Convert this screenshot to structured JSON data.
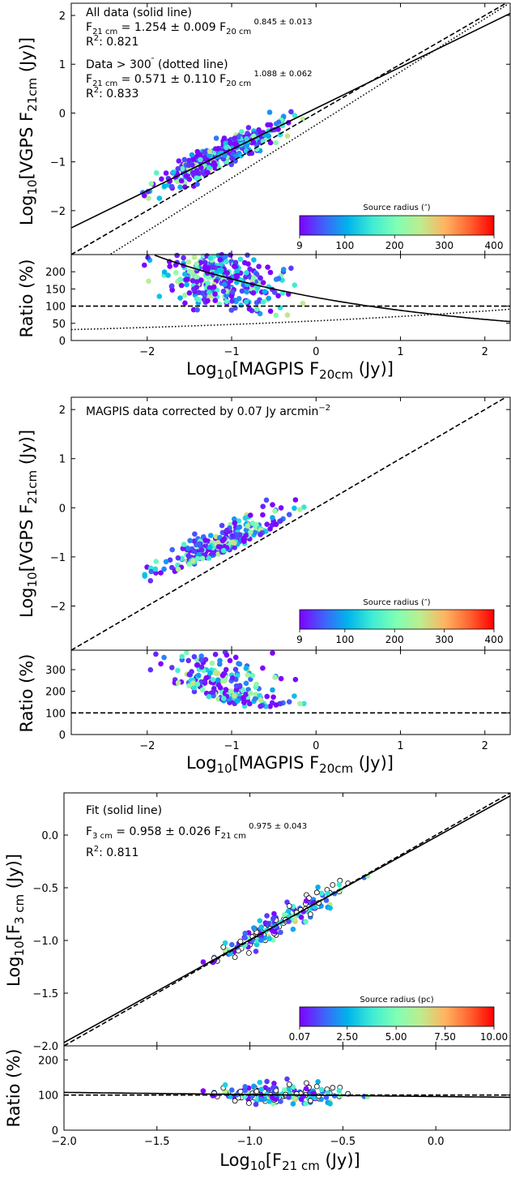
{
  "colors": {
    "colormap": [
      "#8000ff",
      "#4062fa",
      "#00b5eb",
      "#40ecd4",
      "#80ffb4",
      "#c0eb8d",
      "#ffb360",
      "#ff6331",
      "#ff0000"
    ],
    "axes": "#000000",
    "background": "#ffffff"
  },
  "chart_data": [
    {
      "id": "panel1",
      "type": "scatter",
      "xlabel": "Log10[MAGPIS F20cm (Jy)]",
      "ylabel": "Log10[VGPS F21cm (Jy)]",
      "xlim": [
        -2.9,
        2.3
      ],
      "ylim": [
        -2.9,
        2.25
      ],
      "xticks": [
        "−2",
        "−1",
        "0",
        "1",
        "2"
      ],
      "yticks": [
        "−2",
        "−1",
        "0",
        "1",
        "2"
      ],
      "annotations": [
        "All data (solid line)",
        "F21cm = 1.254 ± 0.009 F20cm^(0.845 ± 0.013)",
        "R²: 0.821",
        "Data > 300″ (dotted line)",
        "F21cm = 0.571 ± 0.110 F20cm^(1.088 ± 0.062)",
        "R²: 0.833"
      ],
      "lines": [
        {
          "style": "solid",
          "label": "All data fit",
          "slope": 0.845,
          "intercept": 0.098
        },
        {
          "style": "dashed",
          "label": "1:1",
          "slope": 1.0,
          "intercept": 0.0
        },
        {
          "style": "dotted",
          "label": "Data > 300″ fit",
          "slope": 1.088,
          "intercept": -0.243
        }
      ],
      "colorbar": {
        "label": "Source radius (″)",
        "ticks": [
          "9",
          "100",
          "200",
          "300",
          "400"
        ],
        "range": [
          9,
          400
        ]
      },
      "points_note": "approx. 400 sources",
      "ratio_panel": {
        "ylabel": "Ratio (%)",
        "ylim": [
          0,
          250
        ],
        "yticks": [
          "0",
          "50",
          "100",
          "150",
          "200"
        ],
        "reference": 100
      }
    },
    {
      "id": "panel2",
      "type": "scatter",
      "xlabel": "Log10[MAGPIS F20cm (Jy)]",
      "ylabel": "Log10[VGPS F21cm (Jy)]",
      "xlim": [
        -2.9,
        2.3
      ],
      "ylim": [
        -2.9,
        2.25
      ],
      "xticks": [
        "−2",
        "−1",
        "0",
        "1",
        "2"
      ],
      "yticks": [
        "−2",
        "−1",
        "0",
        "1",
        "2"
      ],
      "annotations": [
        "MAGPIS data corrected by 0.07 Jy arcmin⁻²"
      ],
      "lines": [
        {
          "style": "dashed",
          "label": "1:1",
          "slope": 1.0,
          "intercept": 0.0
        }
      ],
      "colorbar": {
        "label": "Source radius (″)",
        "ticks": [
          "9",
          "100",
          "200",
          "300",
          "400"
        ],
        "range": [
          9,
          400
        ]
      },
      "ratio_panel": {
        "ylabel": "Ratio (%)",
        "ylim": [
          0,
          390
        ],
        "yticks": [
          "0",
          "100",
          "200",
          "300"
        ],
        "reference": 100
      }
    },
    {
      "id": "panel3",
      "type": "scatter",
      "xlabel": "Log10[F21cm (Jy)]",
      "ylabel": "Log10[F3cm (Jy)]",
      "xlim": [
        -2.0,
        0.4
      ],
      "ylim": [
        -2.0,
        0.4
      ],
      "xticks": [
        "−2.0",
        "−1.5",
        "−1.0",
        "−0.5",
        "0.0"
      ],
      "yticks": [
        "−2.0",
        "−1.5",
        "−1.0",
        "−0.5",
        "0.0"
      ],
      "annotations": [
        "Fit (solid line)",
        "F3cm = 0.958 ± 0.026 F21cm^(0.975 ± 0.043)",
        "R²: 0.811"
      ],
      "lines": [
        {
          "style": "solid",
          "label": "Fit",
          "slope": 0.975,
          "intercept": -0.0186
        },
        {
          "style": "dashed",
          "label": "1:1",
          "slope": 1.0,
          "intercept": 0.0
        }
      ],
      "colorbar": {
        "label": "Source radius (pc)",
        "ticks": [
          "0.07",
          "2.50",
          "5.00",
          "7.50",
          "10.00"
        ],
        "range": [
          0.07,
          10.0
        ]
      },
      "ratio_panel": {
        "ylabel": "Ratio (%)",
        "ylim": [
          0,
          240
        ],
        "yticks": [
          "0",
          "100",
          "200"
        ],
        "reference": 100
      }
    }
  ]
}
